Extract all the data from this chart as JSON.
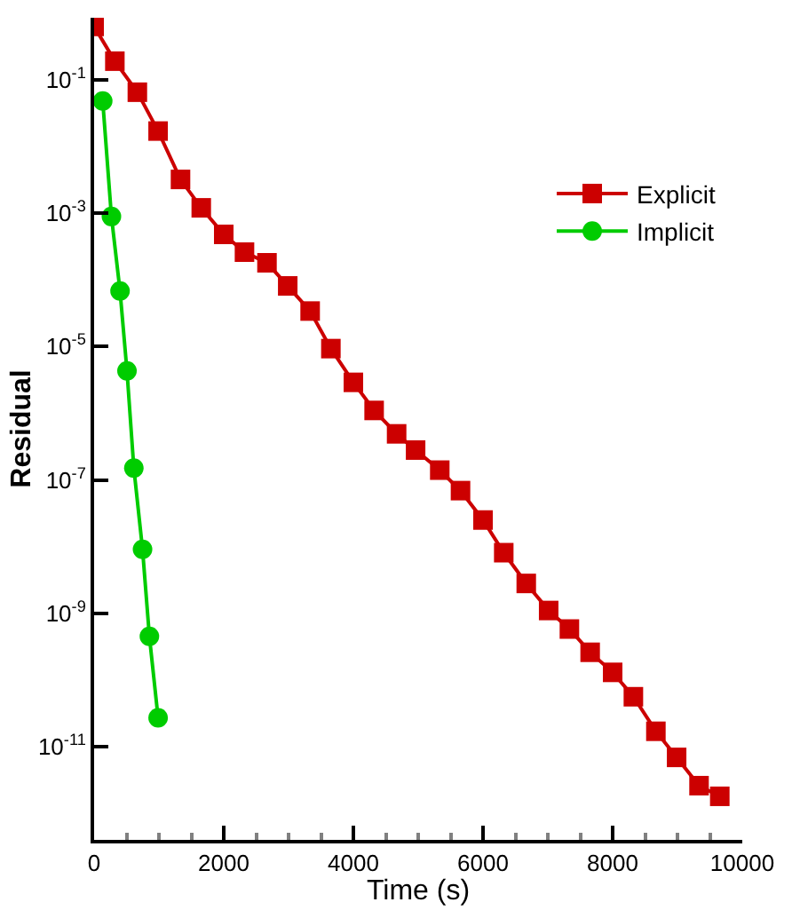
{
  "chart_data": {
    "type": "line",
    "xlabel": "Time (s)",
    "ylabel": "Residual",
    "xlim": [
      0,
      10000
    ],
    "xticks": [
      0,
      2000,
      4000,
      6000,
      8000,
      10000
    ],
    "ylim": [
      4e-13,
      0.85
    ],
    "log": true,
    "yticks": [
      {
        "value": 0.1,
        "label": "10$^{-1}$"
      },
      {
        "value": 0.001,
        "label": "10$^{-3}$"
      },
      {
        "value": 1e-05,
        "label": "10$^{-5}$"
      },
      {
        "value": 1e-07,
        "label": "10$^{-7}$"
      },
      {
        "value": 1e-09,
        "label": "10$^{-9}$"
      },
      {
        "value": 1e-11,
        "label": "10$^{-11}$"
      }
    ],
    "legend": "top right",
    "line_style": "solid",
    "series": [
      {
        "name": "Explicit",
        "color": "#cc0000",
        "marker": "square",
        "x": [
          0,
          320,
          667,
          987,
          1333,
          1653,
          2000,
          2320,
          2667,
          2987,
          3333,
          3653,
          4000,
          4320,
          4667,
          4960,
          5333,
          5653,
          6000,
          6320,
          6667,
          7013,
          7333,
          7653,
          8000,
          8320,
          8667,
          8987,
          9333,
          9653
        ],
        "values": [
          0.63,
          0.19,
          0.065,
          0.017,
          0.0032,
          0.0012,
          0.00048,
          0.00026,
          0.00018,
          8.1e-05,
          3.4e-05,
          9.3e-06,
          2.9e-06,
          1.1e-06,
          4.9e-07,
          2.8e-07,
          1.4e-07,
          6.9e-08,
          2.5e-08,
          8.1e-09,
          2.8e-09,
          1.1e-09,
          5.8e-10,
          2.6e-10,
          1.3e-10,
          5.6e-11,
          1.7e-11,
          6.9e-12,
          2.6e-12,
          1.8e-12
        ]
      },
      {
        "name": "Implicit",
        "color": "#00cc00",
        "marker": "circle",
        "x": [
          133,
          267,
          400,
          507,
          613,
          747,
          853,
          987
        ],
        "values": [
          0.048,
          0.00089,
          6.8e-05,
          4.3e-06,
          1.5e-07,
          9.1e-09,
          4.5e-10,
          2.7e-11
        ]
      }
    ]
  }
}
